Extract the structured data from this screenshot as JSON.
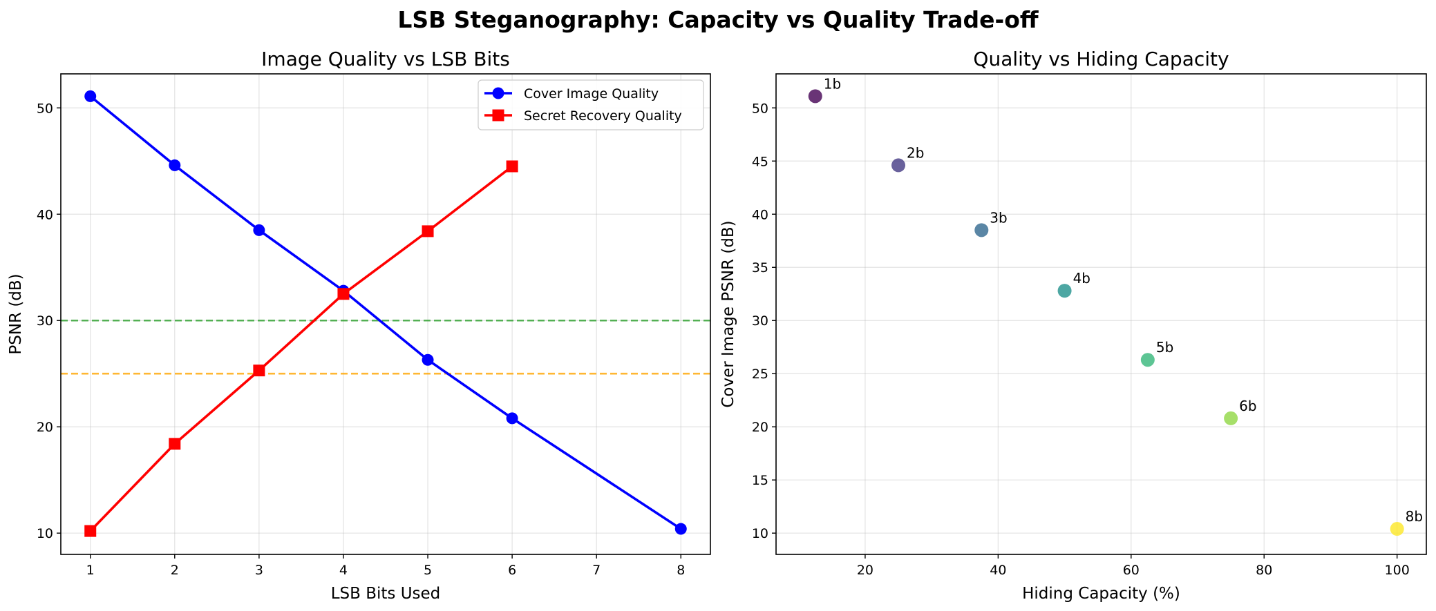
{
  "figure": {
    "suptitle": "LSB Steganography: Capacity vs Quality Trade-off"
  },
  "chart_data": [
    {
      "type": "line",
      "title": "Image Quality vs LSB Bits",
      "xlabel": "LSB Bits Used",
      "ylabel": "PSNR (dB)",
      "xlim": [
        0.65,
        8.35
      ],
      "ylim": [
        8.0,
        53.2
      ],
      "xticks": [
        1,
        2,
        3,
        4,
        5,
        6,
        7,
        8
      ],
      "yticks": [
        10,
        20,
        30,
        40,
        50
      ],
      "grid": true,
      "legend_position": "upper right",
      "series": [
        {
          "name": "Cover Image Quality",
          "color": "#0000ff",
          "marker": "circle",
          "x": [
            1,
            2,
            3,
            4,
            5,
            6,
            8
          ],
          "y": [
            51.1,
            44.6,
            38.5,
            32.8,
            26.3,
            20.8,
            10.4
          ]
        },
        {
          "name": "Secret Recovery Quality",
          "color": "#ff0000",
          "marker": "square",
          "x": [
            1,
            2,
            3,
            4,
            5,
            6
          ],
          "y": [
            10.2,
            18.4,
            25.3,
            32.5,
            38.4,
            44.5
          ]
        }
      ],
      "reference_lines": [
        {
          "y": 30,
          "color": "#2ca02c",
          "style": "dashed"
        },
        {
          "y": 25,
          "color": "#ffa500",
          "style": "dashed"
        }
      ]
    },
    {
      "type": "scatter",
      "title": "Quality vs Hiding Capacity",
      "xlabel": "Hiding Capacity (%)",
      "ylabel": "Cover Image PSNR (dB)",
      "xlim": [
        6.6,
        104.4
      ],
      "ylim": [
        8.0,
        53.2
      ],
      "xticks": [
        20,
        40,
        60,
        80,
        100
      ],
      "yticks": [
        10,
        15,
        20,
        25,
        30,
        35,
        40,
        45,
        50
      ],
      "grid": true,
      "colormap": "viridis",
      "points": [
        {
          "x": 12.5,
          "y": 51.1,
          "label": "1b",
          "color": "#440154"
        },
        {
          "x": 25.0,
          "y": 44.6,
          "label": "2b",
          "color": "#443983"
        },
        {
          "x": 37.5,
          "y": 38.5,
          "label": "3b",
          "color": "#31688e"
        },
        {
          "x": 50.0,
          "y": 32.8,
          "label": "4b",
          "color": "#21918c"
        },
        {
          "x": 62.5,
          "y": 26.3,
          "label": "5b",
          "color": "#35b779"
        },
        {
          "x": 75.0,
          "y": 20.8,
          "label": "6b",
          "color": "#90d743"
        },
        {
          "x": 100.0,
          "y": 10.4,
          "label": "8b",
          "color": "#fde725"
        }
      ]
    }
  ]
}
